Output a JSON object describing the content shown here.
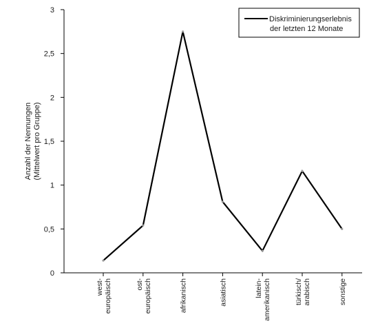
{
  "chart_data": {
    "type": "line",
    "title": "",
    "xlabel": "",
    "ylabel_lines": [
      "Anzahl der Nennungen",
      "(Mittelwert pro Gruppe)"
    ],
    "ylim": [
      0,
      3
    ],
    "yticks": [
      {
        "value": 0,
        "label": "0"
      },
      {
        "value": 0.5,
        "label": "0,5"
      },
      {
        "value": 1,
        "label": "1"
      },
      {
        "value": 1.5,
        "label": "1,5"
      },
      {
        "value": 2,
        "label": "2"
      },
      {
        "value": 2.5,
        "label": "2,5"
      },
      {
        "value": 3,
        "label": "3"
      }
    ],
    "categories": [
      [
        "west-",
        "europäisch"
      ],
      [
        "ost-",
        "europäisch"
      ],
      [
        "afrikanisch"
      ],
      [
        "asiatisch"
      ],
      [
        "latein-",
        "amerikanisch"
      ],
      [
        "türkisch/",
        "arabisch"
      ],
      [
        "sonstige"
      ]
    ],
    "series": [
      {
        "name_lines": [
          "Diskriminierungserlebnis",
          "der letzten 12 Monate"
        ],
        "color": "#000000",
        "values": [
          0.14,
          0.54,
          2.75,
          0.81,
          0.25,
          1.16,
          0.5
        ]
      }
    ],
    "grid": false,
    "legend_position": "top-right"
  }
}
